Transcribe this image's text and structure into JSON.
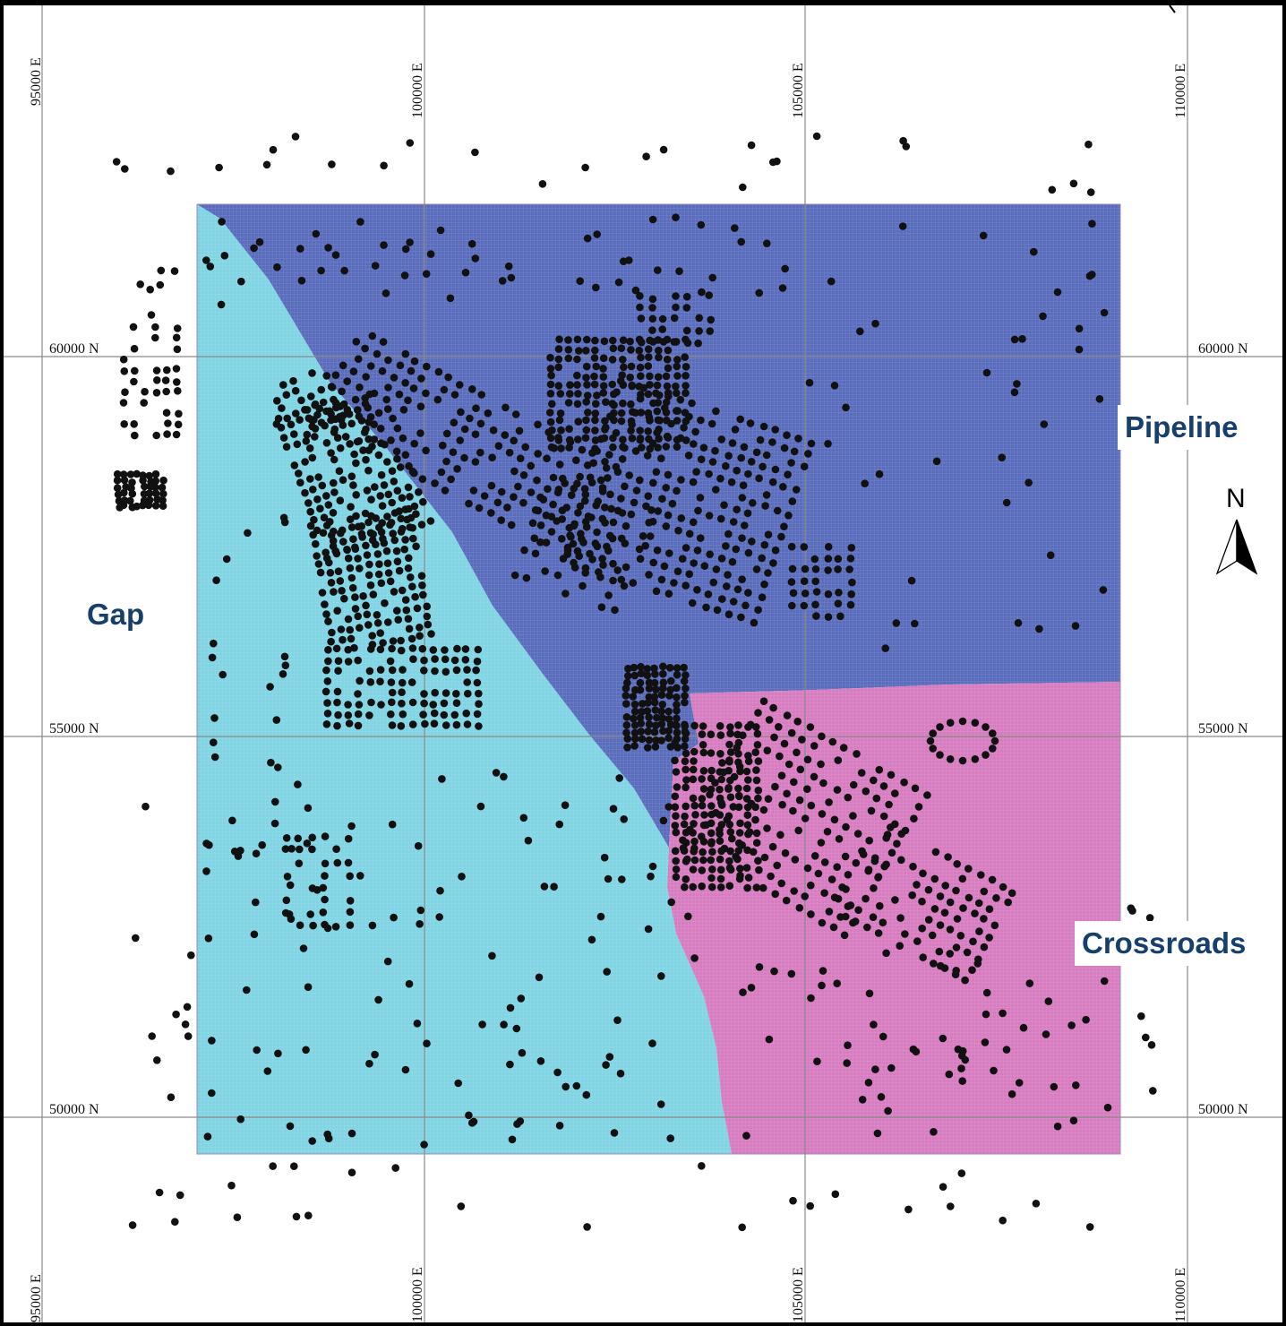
{
  "map": {
    "easting_labels": [
      "95000 E",
      "100000 E",
      "105000 E",
      "110000 E"
    ],
    "northing_labels": [
      "60000 N",
      "55000 N",
      "50000 N"
    ],
    "region_labels": {
      "pipeline": "Pipeline",
      "gap": "Gap",
      "crossroads": "Crossroads"
    },
    "north_arrow_label": "N",
    "region_colors": {
      "pipeline": "#5a6cbc",
      "gap": "#80d4e4",
      "crossroads": "#d77cc0"
    },
    "point_color": "#111111",
    "grid_color": "#8a8a8a"
  }
}
